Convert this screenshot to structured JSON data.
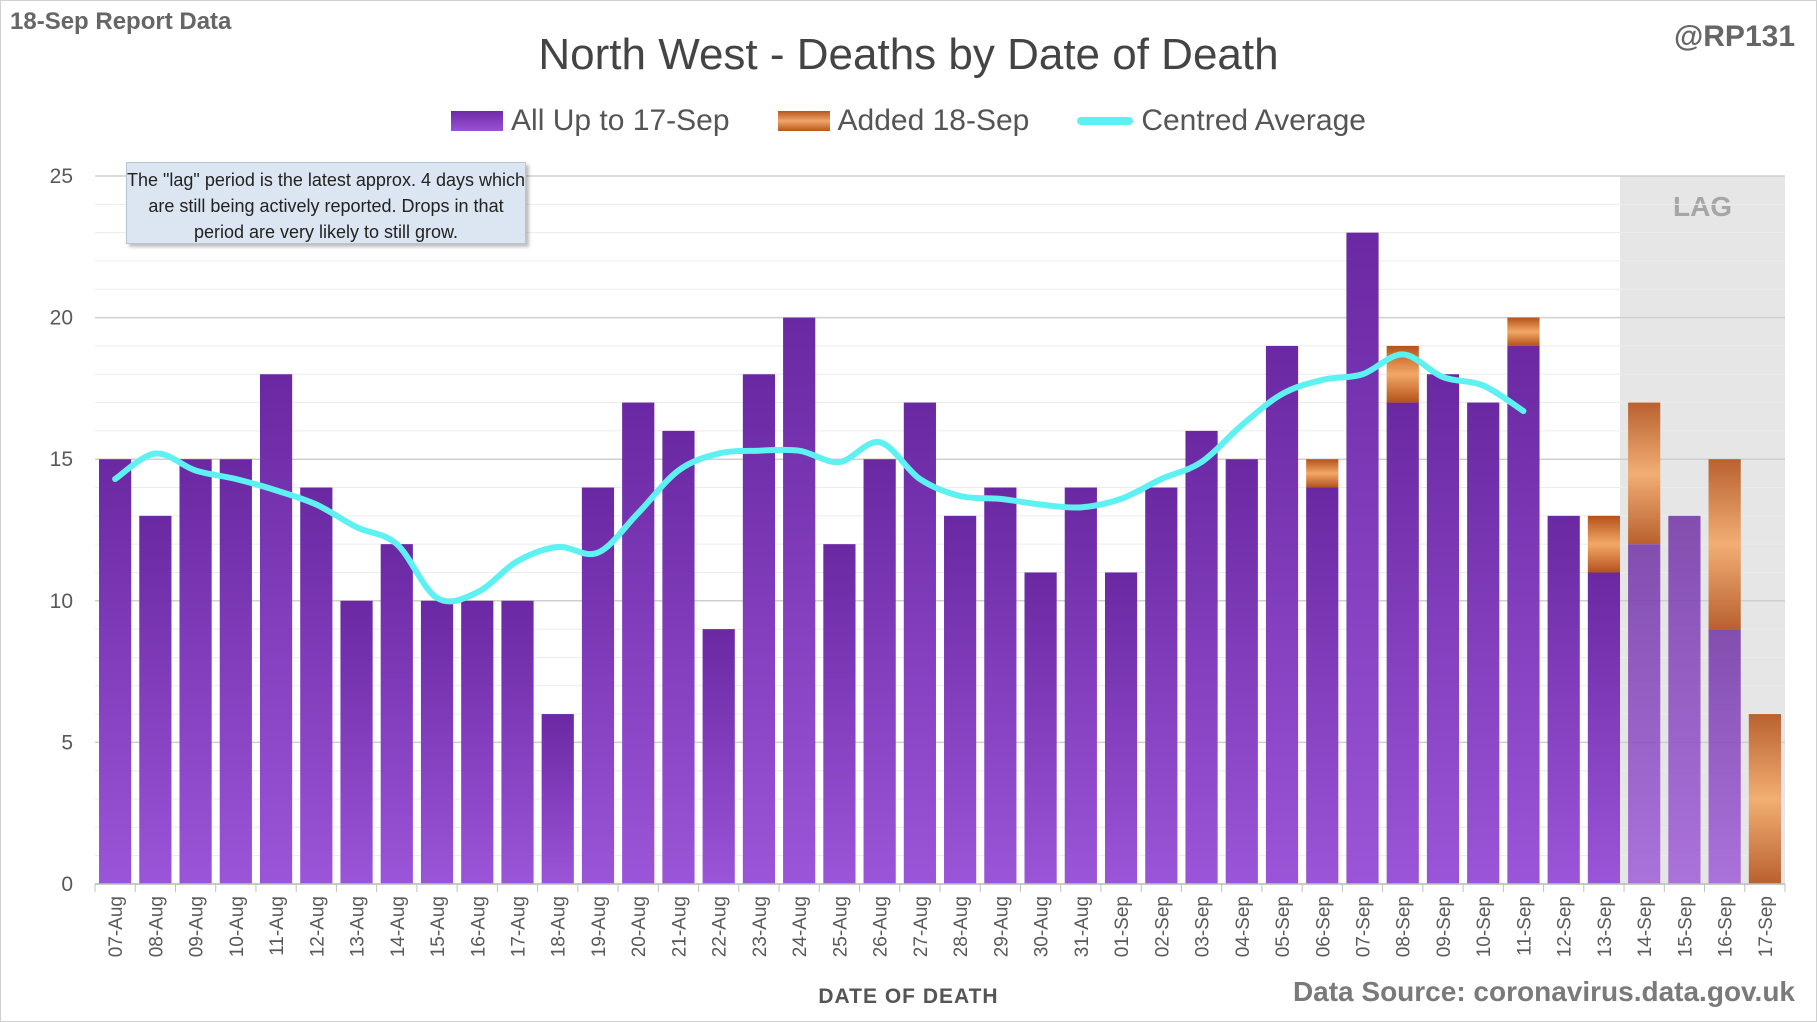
{
  "header": {
    "report_label": "18-Sep Report Data",
    "author": "@RP131",
    "source": "Data Source: coronavirus.data.gov.uk"
  },
  "note": {
    "text": "The \"lag\" period is the latest approx. 4 days which are still being actively reported. Drops in that period are very likely to still grow."
  },
  "lag_label": "LAG",
  "colors": {
    "purple": "#7d35b8",
    "orange": "#d66a22",
    "line": "#5ef1f2",
    "lag_shade": "#e6e6e6",
    "grid": "#d9d9d9"
  },
  "chart_data": {
    "type": "bar",
    "title": "North West - Deaths by Date of Death",
    "xlabel": "DATE OF DEATH",
    "ylabel": "",
    "ylim": [
      0,
      25
    ],
    "yticks": [
      0,
      5,
      10,
      15,
      20,
      25
    ],
    "categories": [
      "07-Aug",
      "08-Aug",
      "09-Aug",
      "10-Aug",
      "11-Aug",
      "12-Aug",
      "13-Aug",
      "14-Aug",
      "15-Aug",
      "16-Aug",
      "17-Aug",
      "18-Aug",
      "19-Aug",
      "20-Aug",
      "21-Aug",
      "22-Aug",
      "23-Aug",
      "24-Aug",
      "25-Aug",
      "26-Aug",
      "27-Aug",
      "28-Aug",
      "29-Aug",
      "30-Aug",
      "31-Aug",
      "01-Sep",
      "02-Sep",
      "03-Sep",
      "04-Sep",
      "05-Sep",
      "06-Sep",
      "07-Sep",
      "08-Sep",
      "09-Sep",
      "10-Sep",
      "11-Sep",
      "12-Sep",
      "13-Sep",
      "14-Sep",
      "15-Sep",
      "16-Sep",
      "17-Sep"
    ],
    "series": [
      {
        "name": "All Up to 17-Sep",
        "stacked": true,
        "values": [
          15,
          13,
          15,
          15,
          18,
          14,
          10,
          12,
          10,
          10,
          10,
          6,
          14,
          17,
          16,
          9,
          18,
          20,
          12,
          15,
          17,
          13,
          14,
          11,
          14,
          11,
          14,
          16,
          15,
          19,
          14,
          23,
          17,
          18,
          17,
          19,
          13,
          11,
          12,
          13,
          9,
          0
        ]
      },
      {
        "name": "Added 18-Sep",
        "stacked": true,
        "values": [
          0,
          0,
          0,
          0,
          0,
          0,
          0,
          0,
          0,
          0,
          0,
          0,
          0,
          0,
          0,
          0,
          0,
          0,
          0,
          0,
          0,
          0,
          0,
          0,
          0,
          0,
          0,
          0,
          0,
          0,
          1,
          0,
          2,
          0,
          0,
          1,
          0,
          2,
          5,
          0,
          6,
          6
        ]
      },
      {
        "name": "Centred Average",
        "type": "line",
        "values": [
          14.3,
          15.2,
          14.6,
          14.3,
          13.9,
          13.4,
          12.6,
          12.0,
          10.1,
          10.3,
          11.4,
          11.9,
          11.7,
          13.1,
          14.6,
          15.2,
          15.3,
          15.3,
          14.9,
          15.6,
          14.3,
          13.7,
          13.6,
          13.4,
          13.3,
          13.6,
          14.3,
          14.9,
          16.2,
          17.3,
          17.8,
          18.0,
          18.7,
          17.9,
          17.6,
          16.7,
          null,
          null,
          null,
          null,
          null,
          null
        ]
      }
    ],
    "lag_range": [
      "14-Sep",
      "17-Sep"
    ],
    "legend_position": "top-center"
  }
}
